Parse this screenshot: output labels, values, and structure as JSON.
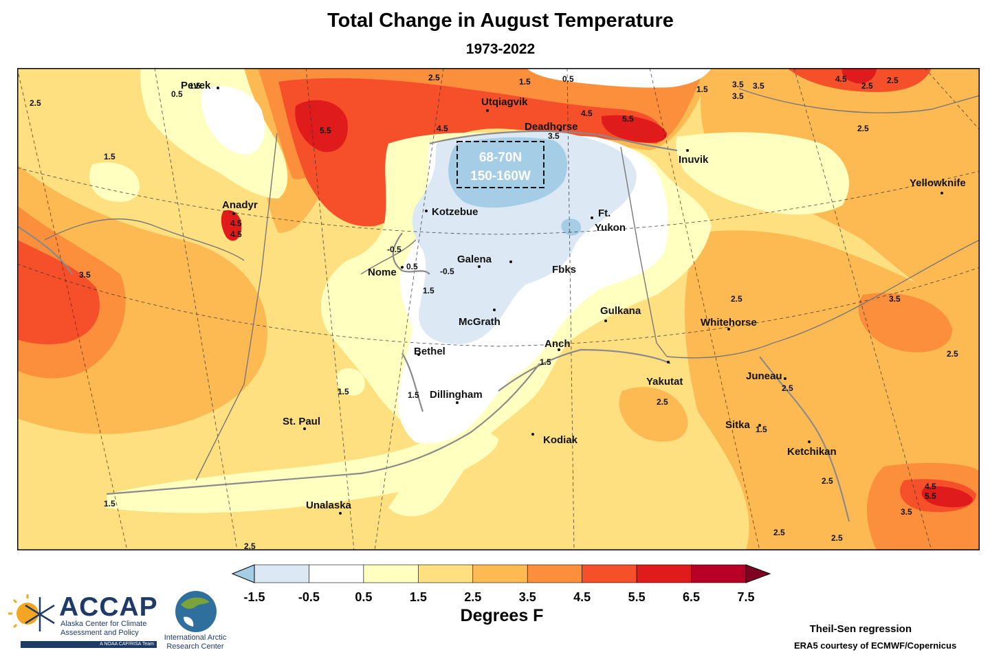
{
  "title": "Total Change in August Temperature",
  "subtitle": "1973-2022",
  "map": {
    "places": [
      {
        "name": "Pevek"
      },
      {
        "name": "Utqiagvik"
      },
      {
        "name": "Deadhorse"
      },
      {
        "name": "Inuvik"
      },
      {
        "name": "Yellowknife"
      },
      {
        "name": "Anadyr"
      },
      {
        "name": "Kotzebue"
      },
      {
        "name": "Ft."
      },
      {
        "name": "Yukon"
      },
      {
        "name": "Nome"
      },
      {
        "name": "Galena"
      },
      {
        "name": "Fbks"
      },
      {
        "name": "Gulkana"
      },
      {
        "name": "Whitehorse"
      },
      {
        "name": "McGrath"
      },
      {
        "name": "Bethel"
      },
      {
        "name": "Anch"
      },
      {
        "name": "Yakutat"
      },
      {
        "name": "Juneau"
      },
      {
        "name": "Dillingham"
      },
      {
        "name": "St. Paul"
      },
      {
        "name": "Sitka"
      },
      {
        "name": "Kodiak"
      },
      {
        "name": "Ketchikan"
      },
      {
        "name": "Unalaska"
      }
    ],
    "contour_labels": [
      "2.5",
      "1.5",
      "0.5",
      "0.5",
      "1.5",
      "2.5",
      "5.5",
      "4.5",
      "3.5",
      "4.5",
      "5.5",
      "4.5",
      "2.5",
      "2.5",
      "1.5",
      "3.5",
      "4.5",
      "-0.5",
      "0.5",
      "-0.5",
      "1.5",
      "3.5",
      "2.5",
      "3.5",
      "2.5",
      "2.5",
      "2.5",
      "1.5",
      "1.5",
      "1.5",
      "1.5",
      "1.5",
      "4.5",
      "5.5",
      "3.5",
      "2.5",
      "2.5",
      "1.5",
      "3.5",
      "3.5",
      "2.5",
      "4.5",
      "2.5",
      "2.5"
    ],
    "highlight_box": {
      "line1": "68-70N",
      "line2": "150-160W"
    }
  },
  "colorbar": {
    "ticks": [
      "-1.5",
      "-0.5",
      "0.5",
      "1.5",
      "2.5",
      "3.5",
      "4.5",
      "5.5",
      "6.5",
      "7.5"
    ],
    "colors": [
      "#dce9f5",
      "#ffffff",
      "#ffffc0",
      "#ffe080",
      "#fdba52",
      "#fb8f3c",
      "#f6502a",
      "#e01b1c",
      "#b80026"
    ],
    "under_color": "#a6cde6",
    "over_color": "#7f0020",
    "label": "Degrees F"
  },
  "footer": {
    "method": "Theil-Sen regression",
    "credit": "ERA5 courtesy of ECMWF/Copernicus"
  },
  "logos": {
    "accap_name": "ACCAP",
    "accap_line1": "Alaska Center for Climate",
    "accap_line2": "Assessment and Policy",
    "accap_tagline": "A NOAA CAP/RISA Team",
    "iarc_line1": "International Arctic",
    "iarc_line2": "Research Center"
  }
}
